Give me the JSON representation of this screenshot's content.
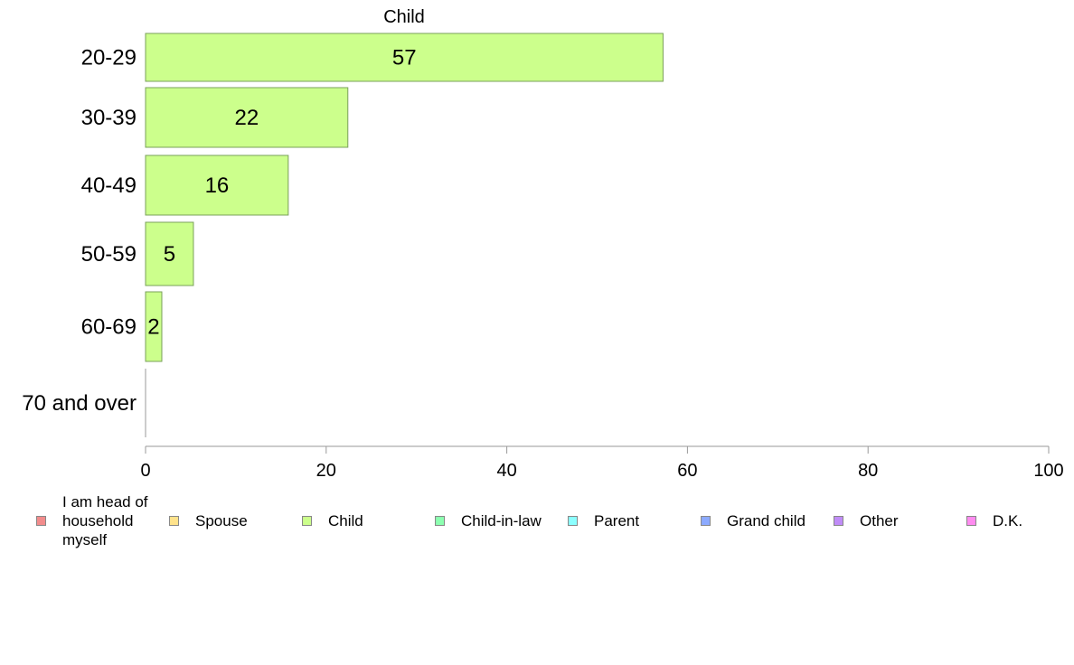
{
  "chart_data": {
    "type": "bar",
    "orientation": "horizontal",
    "title": "Child",
    "categories": [
      "20-29",
      "30-39",
      "40-49",
      "50-59",
      "60-69",
      "70 and over"
    ],
    "values": [
      57.3,
      22.4,
      15.8,
      5.3,
      1.8,
      0
    ],
    "data_labels": [
      "57",
      "22",
      "16",
      "5",
      "2",
      ""
    ],
    "xlim": [
      0,
      100
    ],
    "xticks": [
      "0",
      "20",
      "40",
      "60",
      "80",
      "100"
    ],
    "bar_color": "#ccff8c",
    "bar_border": "#7aa05a",
    "grid": false,
    "legend_position": "bottom",
    "legend": [
      {
        "label": "I am head of household myself",
        "color": "#f28c8c"
      },
      {
        "label": "Spouse",
        "color": "#ffe38c"
      },
      {
        "label": "Child",
        "color": "#ccff8c"
      },
      {
        "label": "Child-in-law",
        "color": "#8cffb0"
      },
      {
        "label": "Parent",
        "color": "#8cffff"
      },
      {
        "label": "Grand child",
        "color": "#8caaff"
      },
      {
        "label": "Other",
        "color": "#c08cf7"
      },
      {
        "label": "D.K.",
        "color": "#ff8cf0"
      }
    ]
  }
}
